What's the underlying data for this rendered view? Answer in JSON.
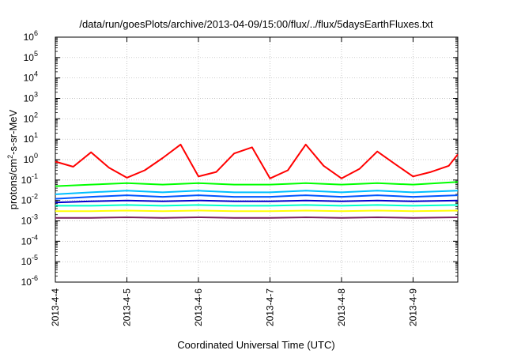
{
  "chart_data": {
    "type": "line",
    "title": "/data/run/goesPlots/archive/2013-04-09/15:00/flux/../flux/5daysEarthFluxes.txt",
    "xlabel": "Coordinated Universal Time (UTC)",
    "ylabel_base": "protons/cm",
    "ylabel_sup": "2",
    "ylabel_tail": "-s-sr-MeV",
    "x_scale": "date",
    "xlim": [
      "2013-04-04",
      "2013-04-09T15:00"
    ],
    "x_ticks": [
      "2013-4-4",
      "2013-4-5",
      "2013-4-6",
      "2013-4-7",
      "2013-4-8",
      "2013-4-9"
    ],
    "y_scale": "log",
    "ylim": [
      1e-06,
      1000000.0
    ],
    "y_ticks": [
      {
        "base": "10",
        "exp": "-6"
      },
      {
        "base": "10",
        "exp": "-5"
      },
      {
        "base": "10",
        "exp": "-4"
      },
      {
        "base": "10",
        "exp": "-3"
      },
      {
        "base": "10",
        "exp": "-2"
      },
      {
        "base": "10",
        "exp": "-1"
      },
      {
        "base": "10",
        "exp": "0"
      },
      {
        "base": "10",
        "exp": "1"
      },
      {
        "base": "10",
        "exp": "2"
      },
      {
        "base": "10",
        "exp": "3"
      },
      {
        "base": "10",
        "exp": "4"
      },
      {
        "base": "10",
        "exp": "5"
      },
      {
        "base": "10",
        "exp": "6"
      }
    ],
    "grid": true,
    "series": [
      {
        "color": "#ff0000",
        "x": [
          "2013-04-04T00:00",
          "2013-04-04T06:00",
          "2013-04-04T12:00",
          "2013-04-04T18:00",
          "2013-04-05T00:00",
          "2013-04-05T06:00",
          "2013-04-05T12:00",
          "2013-04-05T18:00",
          "2013-04-06T00:00",
          "2013-04-06T06:00",
          "2013-04-06T12:00",
          "2013-04-06T18:00",
          "2013-04-07T00:00",
          "2013-04-07T06:00",
          "2013-04-07T12:00",
          "2013-04-07T18:00",
          "2013-04-08T00:00",
          "2013-04-08T06:00",
          "2013-04-08T12:00",
          "2013-04-08T18:00",
          "2013-04-09T00:00",
          "2013-04-09T06:00",
          "2013-04-09T12:00",
          "2013-04-09T15:00"
        ],
        "values": [
          0.8,
          0.45,
          2.3,
          0.4,
          0.13,
          0.3,
          1.2,
          5.5,
          0.15,
          0.25,
          2.0,
          4.0,
          0.12,
          0.3,
          5.5,
          0.5,
          0.12,
          0.35,
          2.5,
          0.6,
          0.15,
          0.25,
          0.5,
          1.8
        ]
      },
      {
        "color": "#00ff00",
        "x": [
          "2013-04-04T00:00",
          "2013-04-04T12:00",
          "2013-04-05T00:00",
          "2013-04-05T12:00",
          "2013-04-06T00:00",
          "2013-04-06T12:00",
          "2013-04-07T00:00",
          "2013-04-07T12:00",
          "2013-04-08T00:00",
          "2013-04-08T12:00",
          "2013-04-09T00:00",
          "2013-04-09T15:00"
        ],
        "values": [
          0.05,
          0.06,
          0.07,
          0.06,
          0.07,
          0.06,
          0.06,
          0.07,
          0.06,
          0.07,
          0.06,
          0.08
        ]
      },
      {
        "color": "#00bfff",
        "x": [
          "2013-04-04T00:00",
          "2013-04-04T12:00",
          "2013-04-05T00:00",
          "2013-04-05T12:00",
          "2013-04-06T00:00",
          "2013-04-06T12:00",
          "2013-04-07T00:00",
          "2013-04-07T12:00",
          "2013-04-08T00:00",
          "2013-04-08T12:00",
          "2013-04-09T00:00",
          "2013-04-09T15:00"
        ],
        "values": [
          0.02,
          0.025,
          0.03,
          0.025,
          0.03,
          0.025,
          0.025,
          0.03,
          0.025,
          0.03,
          0.025,
          0.03
        ]
      },
      {
        "color": "#0055ff",
        "x": [
          "2013-04-04T00:00",
          "2013-04-04T12:00",
          "2013-04-05T00:00",
          "2013-04-05T12:00",
          "2013-04-06T00:00",
          "2013-04-06T12:00",
          "2013-04-07T00:00",
          "2013-04-07T12:00",
          "2013-04-08T00:00",
          "2013-04-08T12:00",
          "2013-04-09T00:00",
          "2013-04-09T15:00"
        ],
        "values": [
          0.012,
          0.015,
          0.018,
          0.015,
          0.018,
          0.015,
          0.015,
          0.018,
          0.015,
          0.018,
          0.015,
          0.018
        ]
      },
      {
        "color": "#0000cc",
        "x": [
          "2013-04-04T00:00",
          "2013-04-04T12:00",
          "2013-04-05T00:00",
          "2013-04-05T12:00",
          "2013-04-06T00:00",
          "2013-04-06T12:00",
          "2013-04-07T00:00",
          "2013-04-07T12:00",
          "2013-04-08T00:00",
          "2013-04-08T12:00",
          "2013-04-09T00:00",
          "2013-04-09T15:00"
        ],
        "values": [
          0.008,
          0.009,
          0.01,
          0.009,
          0.01,
          0.009,
          0.009,
          0.01,
          0.009,
          0.01,
          0.009,
          0.01
        ]
      },
      {
        "color": "#00ffcc",
        "x": [
          "2013-04-04T00:00",
          "2013-04-04T12:00",
          "2013-04-05T00:00",
          "2013-04-05T12:00",
          "2013-04-06T00:00",
          "2013-04-06T12:00",
          "2013-04-07T00:00",
          "2013-04-07T12:00",
          "2013-04-08T00:00",
          "2013-04-08T12:00",
          "2013-04-09T00:00",
          "2013-04-09T15:00"
        ],
        "values": [
          0.0055,
          0.0055,
          0.006,
          0.0055,
          0.006,
          0.0055,
          0.0055,
          0.006,
          0.0055,
          0.006,
          0.0055,
          0.006
        ]
      },
      {
        "color": "#ffff00",
        "x": [
          "2013-04-04T00:00",
          "2013-04-04T12:00",
          "2013-04-05T00:00",
          "2013-04-05T12:00",
          "2013-04-06T00:00",
          "2013-04-06T12:00",
          "2013-04-07T00:00",
          "2013-04-07T12:00",
          "2013-04-08T00:00",
          "2013-04-08T12:00",
          "2013-04-09T00:00",
          "2013-04-09T15:00"
        ],
        "values": [
          0.003,
          0.003,
          0.0032,
          0.003,
          0.0032,
          0.003,
          0.003,
          0.0032,
          0.003,
          0.0032,
          0.003,
          0.0032
        ]
      },
      {
        "color": "#7a1f5c",
        "x": [
          "2013-04-04T00:00",
          "2013-04-04T12:00",
          "2013-04-05T00:00",
          "2013-04-05T12:00",
          "2013-04-06T00:00",
          "2013-04-06T12:00",
          "2013-04-07T00:00",
          "2013-04-07T12:00",
          "2013-04-08T00:00",
          "2013-04-08T12:00",
          "2013-04-09T00:00",
          "2013-04-09T15:00"
        ],
        "values": [
          0.0014,
          0.0014,
          0.0015,
          0.0014,
          0.0015,
          0.0014,
          0.0014,
          0.0015,
          0.0014,
          0.0015,
          0.0014,
          0.0015
        ]
      }
    ]
  }
}
